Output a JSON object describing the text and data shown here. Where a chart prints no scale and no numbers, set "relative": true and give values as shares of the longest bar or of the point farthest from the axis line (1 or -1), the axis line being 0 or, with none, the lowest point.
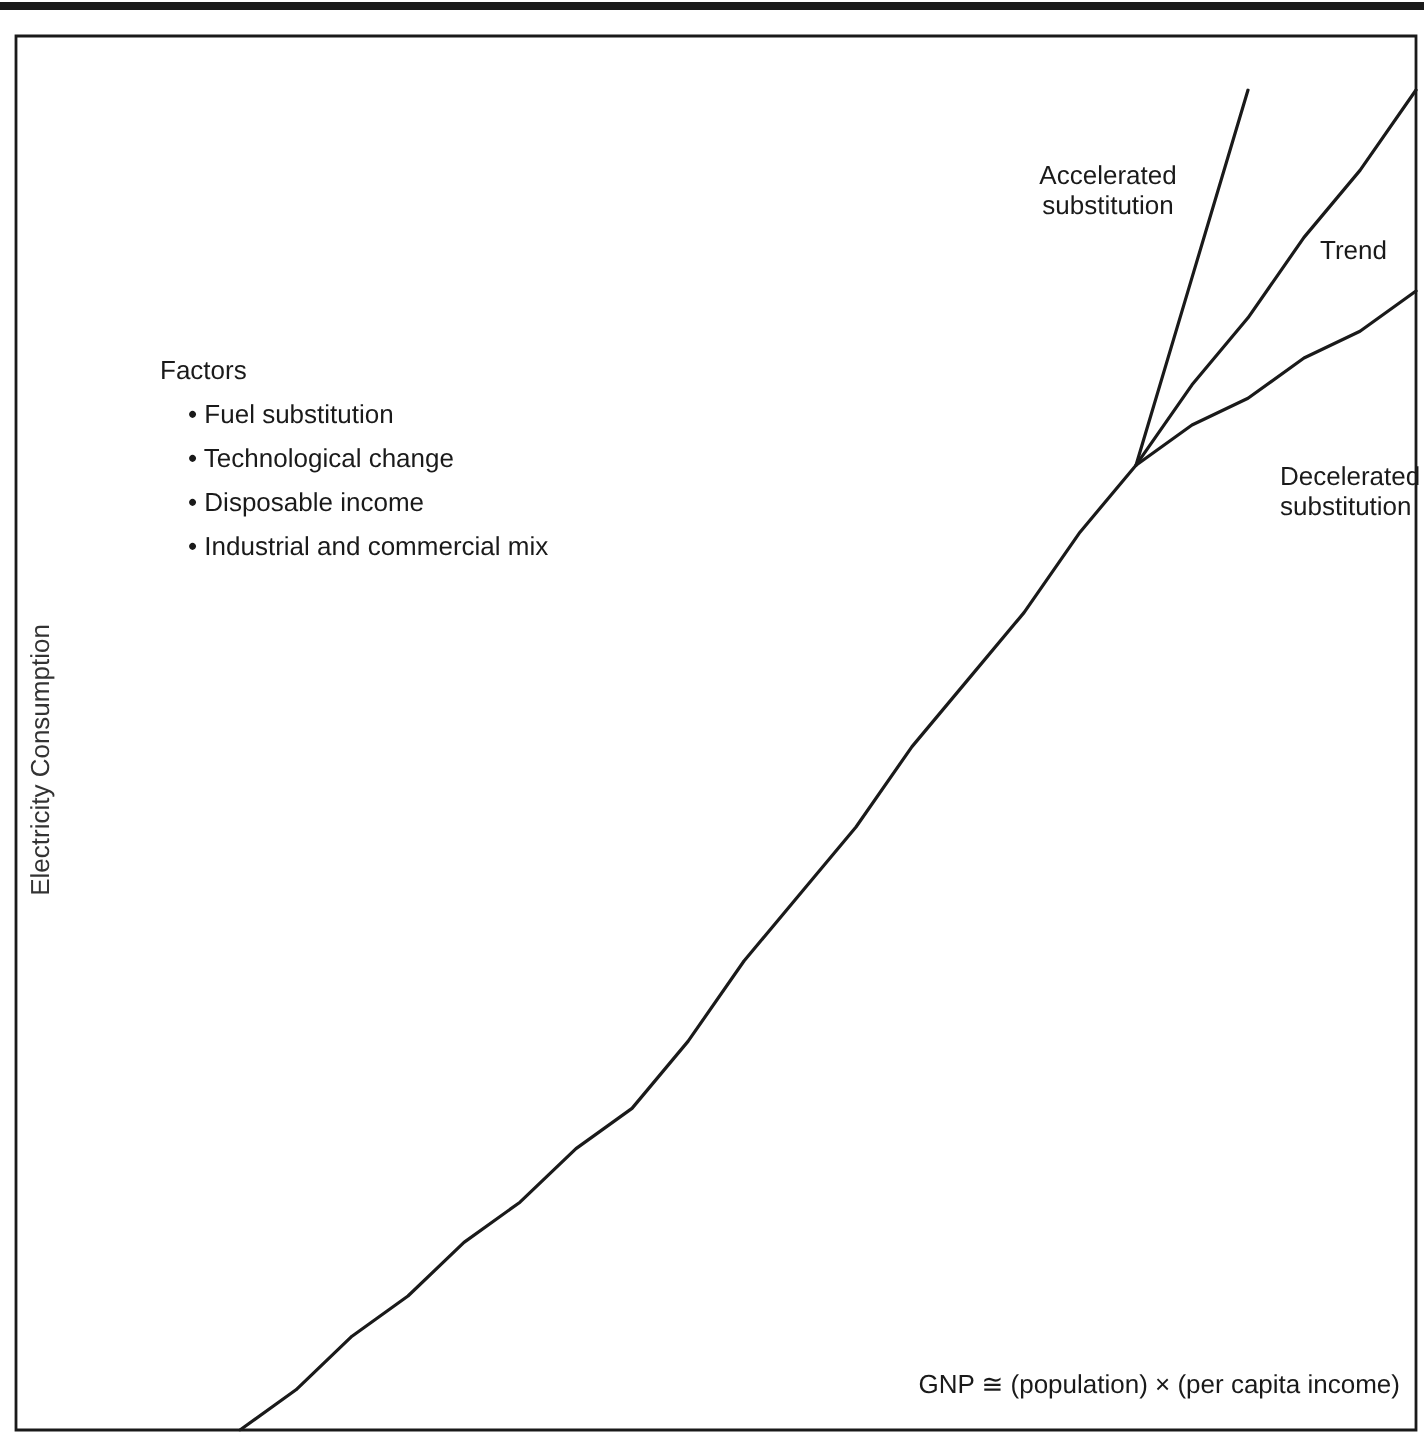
{
  "chart_data": {
    "type": "line",
    "relative": true,
    "ylabel": "Electricity Consumption",
    "xlabel": "GNP ≅ (population) × (per capita income)",
    "categories": [
      null,
      null,
      null,
      null,
      null,
      null,
      null,
      null,
      null,
      null,
      null,
      null,
      null,
      null,
      null,
      null,
      null,
      null,
      null,
      null,
      null,
      null,
      null,
      null,
      null,
      null
    ],
    "series": [
      {
        "name": "Trend",
        "color": "#1a1a1a",
        "values": [
          null,
          null,
          null,
          null,
          0,
          0.03,
          0.07,
          0.1,
          0.14,
          0.17,
          0.21,
          0.24,
          0.29,
          0.35,
          0.4,
          0.45,
          0.51,
          0.56,
          0.61,
          0.67,
          0.72,
          0.78,
          0.83,
          0.89,
          0.94,
          1.0
        ]
      },
      {
        "name": "Accelerated substitution",
        "color": "#1a1a1a",
        "values": [
          null,
          null,
          null,
          null,
          null,
          null,
          null,
          null,
          null,
          null,
          null,
          null,
          null,
          null,
          null,
          null,
          null,
          null,
          null,
          null,
          0.72,
          0.86,
          1.0,
          null,
          null,
          null
        ]
      },
      {
        "name": "Decelerated substitution",
        "color": "#1a1a1a",
        "values": [
          null,
          null,
          null,
          null,
          null,
          null,
          null,
          null,
          null,
          null,
          null,
          null,
          null,
          null,
          null,
          null,
          null,
          null,
          null,
          null,
          0.72,
          0.75,
          0.77,
          0.8,
          0.82,
          0.85
        ]
      }
    ],
    "annotations": [
      "Factors",
      "• Fuel substitution",
      "• Technological change",
      "• Disposable income",
      "• Industrial and commercial mix"
    ],
    "grid": false,
    "legend": false,
    "marker": "none",
    "line_style": "solid"
  }
}
